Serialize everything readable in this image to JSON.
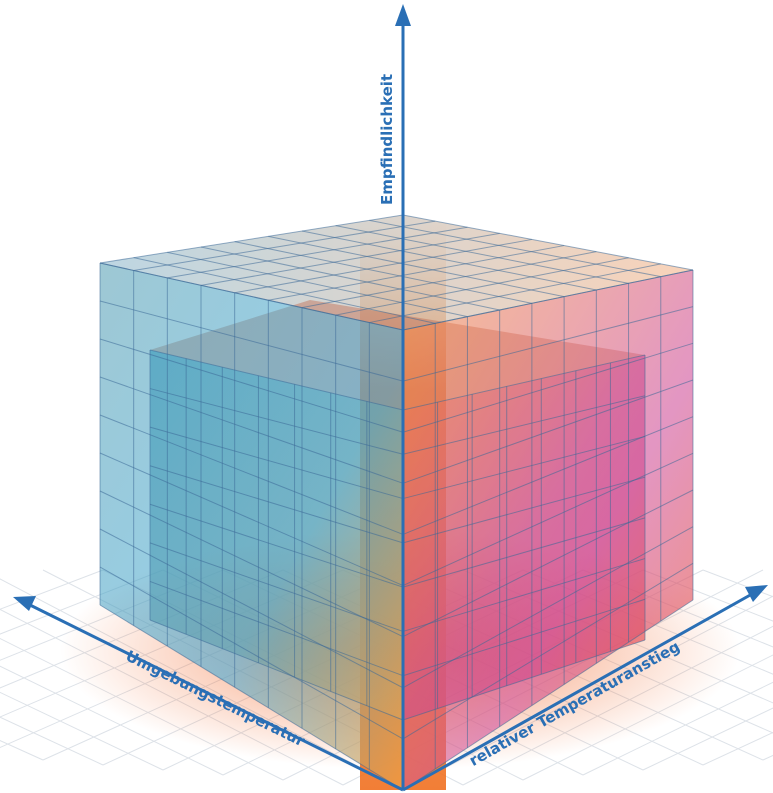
{
  "axes": {
    "vertical": "Empfindlichkeit",
    "left": "Umgebungstemperatur",
    "right": "relativer Temperaturanstieg"
  }
}
